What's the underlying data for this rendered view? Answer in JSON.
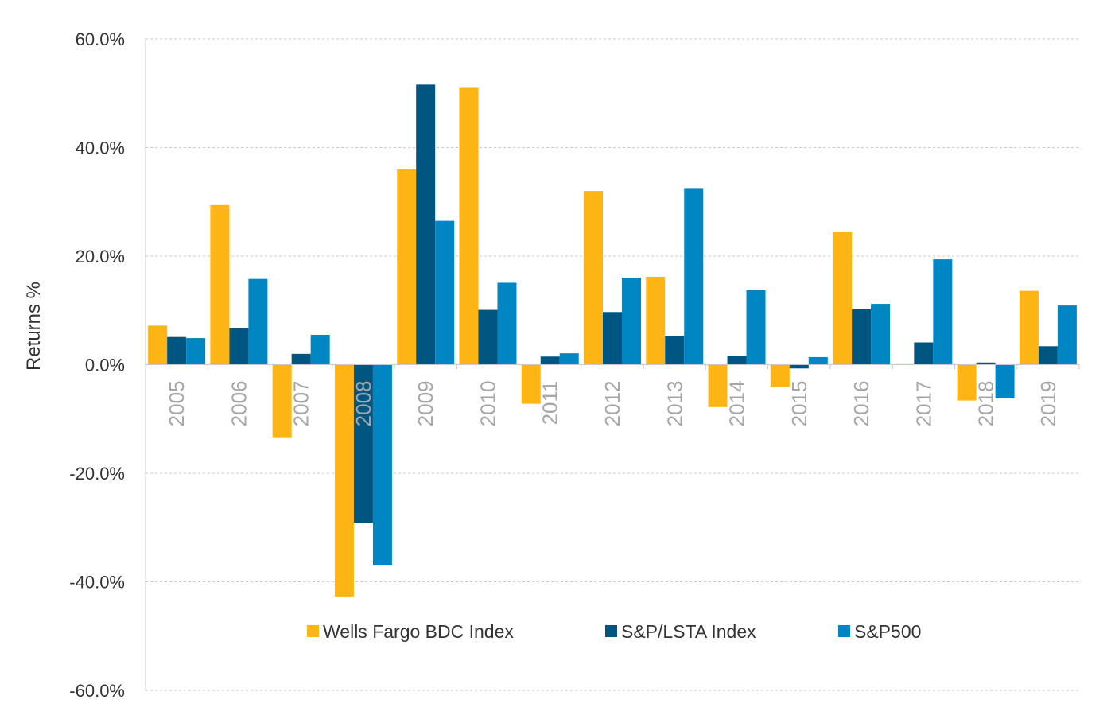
{
  "chart_data": {
    "type": "bar",
    "title": "",
    "xlabel": "",
    "ylabel": "Returns %",
    "ylim": [
      -60,
      60
    ],
    "yticks": [
      -60,
      -40,
      -20,
      0,
      20,
      40,
      60
    ],
    "ytick_labels": [
      "-60.0%",
      "-40.0%",
      "-20.0%",
      "0.0%",
      "20.0%",
      "40.0%",
      "60.0%"
    ],
    "grid": true,
    "legend_position": "bottom-center",
    "categories": [
      "2005",
      "2006",
      "2007",
      "2008",
      "2009",
      "2010",
      "2011",
      "2012",
      "2013",
      "2014",
      "2015",
      "2016",
      "2017",
      "2018",
      "2019"
    ],
    "series": [
      {
        "name": "Wells Fargo BDC Index",
        "color": "#FDB515",
        "values": [
          7.2,
          29.4,
          -13.5,
          -42.7,
          36.0,
          51.0,
          -7.2,
          32.0,
          16.2,
          -7.8,
          -4.1,
          24.4,
          0.1,
          -6.6,
          13.6
        ]
      },
      {
        "name": "S&P/LSTA Index",
        "color": "#005581",
        "values": [
          5.1,
          6.7,
          2.0,
          -29.1,
          51.6,
          10.1,
          1.5,
          9.7,
          5.3,
          1.6,
          -0.7,
          10.2,
          4.1,
          0.4,
          3.4
        ]
      },
      {
        "name": "S&P500",
        "color": "#0087C3",
        "values": [
          4.9,
          15.8,
          5.5,
          -37.0,
          26.5,
          15.1,
          2.1,
          16.0,
          32.4,
          13.7,
          1.4,
          11.2,
          19.4,
          -6.2,
          10.9
        ]
      }
    ]
  }
}
